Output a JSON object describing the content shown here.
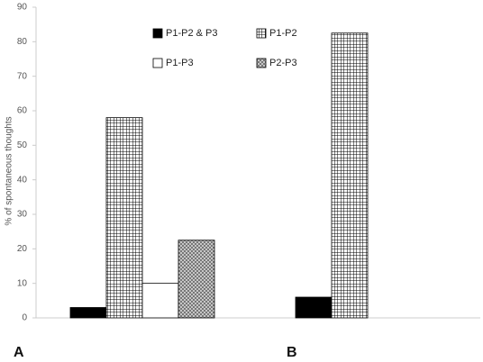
{
  "chart_data": {
    "type": "bar",
    "y_label": "% of spontaneous thoughts",
    "categories": [
      "A",
      "B"
    ],
    "series": [
      {
        "name": "P1-P2 & P3",
        "color": "#000000",
        "pattern": "solid",
        "values": [
          3,
          6
        ]
      },
      {
        "name": "P1-P2",
        "color": "#000000",
        "pattern": "grid",
        "values": [
          58,
          82.5
        ]
      },
      {
        "name": "P1-P3",
        "color": "#ffffff",
        "pattern": "solid",
        "values": [
          10,
          null
        ]
      },
      {
        "name": "P2-P3",
        "color": "#888888",
        "pattern": "dots",
        "values": [
          22.5,
          null
        ]
      }
    ],
    "ylim": [
      0,
      90
    ],
    "yticks": [
      0,
      10,
      20,
      30,
      40,
      50,
      60,
      70,
      80,
      90
    ],
    "grid": false
  }
}
